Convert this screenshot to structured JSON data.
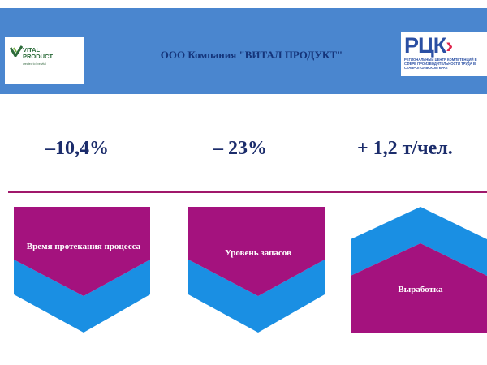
{
  "header": {
    "title": "ООО Компания \"ВИТАЛ ПРОДУКТ\"",
    "left_logo": {
      "brand": "VITAL\nPRODUCT",
      "tagline": "created to live vital",
      "mark_color": "#2c6b3a"
    },
    "right_logo": {
      "letters": [
        "Р",
        "Ц",
        "К"
      ],
      "arrow": "›",
      "description": "Региональный центр компетенций в сфере производительности труда в Ставропольском крае"
    },
    "background_color": "#4a86cf"
  },
  "metrics": [
    {
      "value": "–10,4%"
    },
    {
      "value": "– 23%"
    },
    {
      "value": "+ 1,2 т/чел."
    }
  ],
  "cards": [
    {
      "label": "Время протекания процесса",
      "direction": "down"
    },
    {
      "label": "Уровень запасов",
      "direction": "down"
    },
    {
      "label": "Выработка",
      "direction": "up"
    }
  ],
  "colors": {
    "magenta": "#a4127e",
    "blue": "#1a8fe3",
    "metric_text": "#1b2c6b",
    "divider": "#a0186b"
  }
}
